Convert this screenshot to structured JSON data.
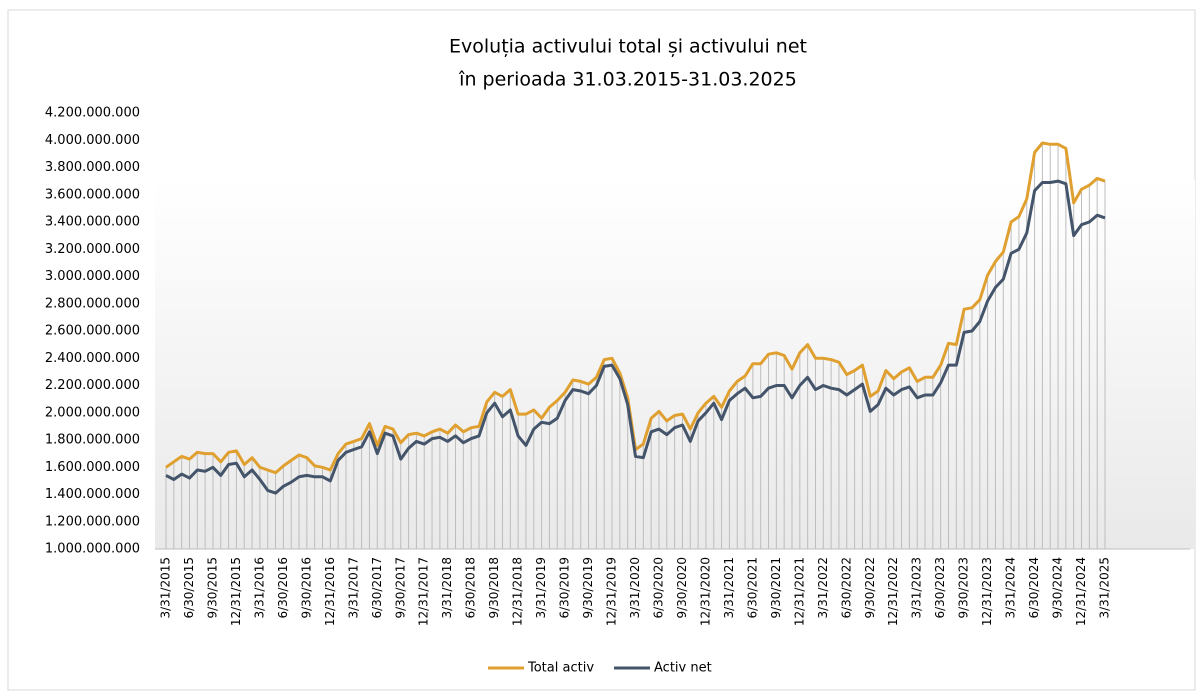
{
  "chart_data": {
    "type": "line",
    "title": "Evoluția activului total și activului net",
    "subtitle": "în perioada 31.03.2015-31.03.2025",
    "categories": [
      "3/31/2015",
      null,
      null,
      "6/30/2015",
      null,
      null,
      "9/30/2015",
      null,
      null,
      "12/31/2015",
      null,
      null,
      "3/31/2016",
      null,
      null,
      "6/30/2016",
      null,
      null,
      "9/30/2016",
      null,
      null,
      "12/31/2016",
      null,
      null,
      "3/31/2017",
      null,
      null,
      "6/30/2017",
      null,
      null,
      "9/30/2017",
      null,
      null,
      "12/31/2017",
      null,
      null,
      "3/31/2018",
      null,
      null,
      "6/30/2018",
      null,
      null,
      "9/30/2018",
      null,
      null,
      "12/31/2018",
      null,
      null,
      "3/31/2019",
      null,
      null,
      "6/30/2019",
      null,
      null,
      "9/30/2019",
      null,
      null,
      "12/31/2019",
      null,
      null,
      "3/31/2020",
      null,
      null,
      "6/30/2020",
      null,
      null,
      "9/30/2020",
      null,
      null,
      "12/31/2020",
      null,
      null,
      "3/31/2021",
      null,
      null,
      "6/30/2021",
      null,
      null,
      "9/30/2021",
      null,
      null,
      "12/31/2021",
      null,
      null,
      "3/31/2022",
      null,
      null,
      "6/30/2022",
      null,
      null,
      "9/30/2022",
      null,
      null,
      "12/31/2022",
      null,
      null,
      "3/31/2023",
      null,
      null,
      "6/30/2023",
      null,
      null,
      "9/30/2023",
      null,
      null,
      "12/31/2023",
      null,
      null,
      "3/31/2024",
      null,
      null,
      "6/30/2024",
      null,
      null,
      "9/30/2024",
      null,
      null,
      "12/31/2024",
      null,
      null,
      "3/31/2025"
    ],
    "series": [
      {
        "name": "Total activ",
        "color": "#e0a030",
        "values": [
          1600000000,
          1640000000,
          1680000000,
          1660000000,
          1710000000,
          1700000000,
          1700000000,
          1640000000,
          1710000000,
          1720000000,
          1620000000,
          1670000000,
          1600000000,
          1580000000,
          1560000000,
          1610000000,
          1650000000,
          1690000000,
          1670000000,
          1610000000,
          1600000000,
          1580000000,
          1700000000,
          1770000000,
          1790000000,
          1810000000,
          1920000000,
          1760000000,
          1900000000,
          1880000000,
          1780000000,
          1840000000,
          1850000000,
          1830000000,
          1860000000,
          1880000000,
          1850000000,
          1910000000,
          1860000000,
          1890000000,
          1900000000,
          2080000000,
          2150000000,
          2120000000,
          2170000000,
          1990000000,
          1990000000,
          2020000000,
          1960000000,
          2040000000,
          2090000000,
          2150000000,
          2240000000,
          2230000000,
          2210000000,
          2260000000,
          2390000000,
          2400000000,
          2290000000,
          2110000000,
          1730000000,
          1770000000,
          1960000000,
          2010000000,
          1940000000,
          1980000000,
          1990000000,
          1880000000,
          2000000000,
          2070000000,
          2120000000,
          2040000000,
          2160000000,
          2230000000,
          2270000000,
          2360000000,
          2360000000,
          2430000000,
          2440000000,
          2420000000,
          2320000000,
          2440000000,
          2500000000,
          2400000000,
          2400000000,
          2390000000,
          2370000000,
          2280000000,
          2310000000,
          2350000000,
          2120000000,
          2160000000,
          2310000000,
          2250000000,
          2300000000,
          2330000000,
          2230000000,
          2260000000,
          2260000000,
          2350000000,
          2510000000,
          2500000000,
          2760000000,
          2770000000,
          2830000000,
          3010000000,
          3110000000,
          3180000000,
          3400000000,
          3440000000,
          3570000000,
          3910000000,
          3980000000,
          3970000000,
          3970000000,
          3940000000,
          3540000000,
          3640000000,
          3670000000,
          3720000000,
          3700000000
        ]
      },
      {
        "name": "Activ net",
        "color": "#44546a",
        "values": [
          1540000000,
          1510000000,
          1550000000,
          1520000000,
          1580000000,
          1570000000,
          1600000000,
          1540000000,
          1620000000,
          1630000000,
          1530000000,
          1580000000,
          1510000000,
          1430000000,
          1410000000,
          1460000000,
          1490000000,
          1530000000,
          1540000000,
          1530000000,
          1530000000,
          1500000000,
          1650000000,
          1710000000,
          1730000000,
          1750000000,
          1860000000,
          1700000000,
          1850000000,
          1830000000,
          1660000000,
          1740000000,
          1790000000,
          1770000000,
          1810000000,
          1820000000,
          1790000000,
          1830000000,
          1780000000,
          1810000000,
          1830000000,
          2000000000,
          2070000000,
          1970000000,
          2020000000,
          1830000000,
          1760000000,
          1880000000,
          1930000000,
          1920000000,
          1960000000,
          2090000000,
          2170000000,
          2160000000,
          2140000000,
          2200000000,
          2340000000,
          2350000000,
          2250000000,
          2060000000,
          1680000000,
          1670000000,
          1860000000,
          1880000000,
          1840000000,
          1890000000,
          1910000000,
          1790000000,
          1940000000,
          2000000000,
          2070000000,
          1950000000,
          2090000000,
          2140000000,
          2180000000,
          2110000000,
          2120000000,
          2180000000,
          2200000000,
          2200000000,
          2110000000,
          2200000000,
          2260000000,
          2170000000,
          2200000000,
          2180000000,
          2170000000,
          2130000000,
          2170000000,
          2210000000,
          2010000000,
          2060000000,
          2180000000,
          2130000000,
          2170000000,
          2190000000,
          2110000000,
          2130000000,
          2130000000,
          2220000000,
          2350000000,
          2350000000,
          2590000000,
          2600000000,
          2670000000,
          2820000000,
          2920000000,
          2980000000,
          3170000000,
          3200000000,
          3320000000,
          3630000000,
          3690000000,
          3690000000,
          3700000000,
          3680000000,
          3300000000,
          3380000000,
          3400000000,
          3450000000,
          3430000000
        ]
      }
    ],
    "ylim": [
      1000000000,
      4200000000
    ],
    "yticks": [
      {
        "value": 1000000000,
        "label": "1.000.000.000"
      },
      {
        "value": 1200000000,
        "label": "1.200.000.000"
      },
      {
        "value": 1400000000,
        "label": "1.400.000.000"
      },
      {
        "value": 1600000000,
        "label": "1.600.000.000"
      },
      {
        "value": 1800000000,
        "label": "1.800.000.000"
      },
      {
        "value": 2000000000,
        "label": "2.000.000.000"
      },
      {
        "value": 2200000000,
        "label": "2.200.000.000"
      },
      {
        "value": 2400000000,
        "label": "2.400.000.000"
      },
      {
        "value": 2600000000,
        "label": "2.600.000.000"
      },
      {
        "value": 2800000000,
        "label": "2.800.000.000"
      },
      {
        "value": 3000000000,
        "label": "3.000.000.000"
      },
      {
        "value": 3200000000,
        "label": "3.200.000.000"
      },
      {
        "value": 3400000000,
        "label": "3.400.000.000"
      },
      {
        "value": 3600000000,
        "label": "3.600.000.000"
      },
      {
        "value": 3800000000,
        "label": "3.800.000.000"
      },
      {
        "value": 4000000000,
        "label": "4.000.000.000"
      },
      {
        "value": 4200000000,
        "label": "4.200.000.000"
      }
    ],
    "grid": false,
    "drop_lines": true,
    "legend": "bottom"
  }
}
